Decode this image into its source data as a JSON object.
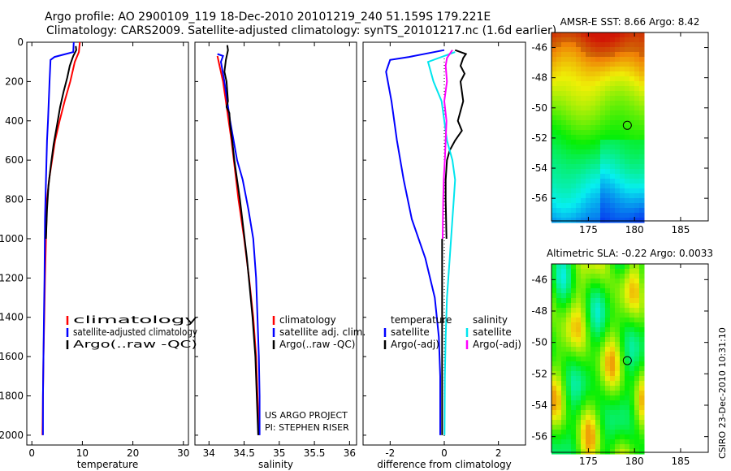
{
  "header": {
    "title_line1": "Argo profile: AO 2900109_119 18-Dec-2010 20101219_240 51.159S 179.221E",
    "title_line2": "Climatology: CARS2009. Satellite-adjusted climatology: synTS_20101217.nc (1.6d earlier)"
  },
  "colors": {
    "climatology": "#ff0000",
    "satellite": "#0000ff",
    "argo": "#000000",
    "salinity_sat": "#00e5ee",
    "salinity_argo": "#ff00ff"
  },
  "chart_data": [
    {
      "type": "line",
      "id": "temperature",
      "xlabel": "temperature",
      "xlim": [
        -1,
        31
      ],
      "ylim": [
        0,
        2050
      ],
      "x_ticks": [
        0,
        10,
        20,
        30
      ],
      "y_ticks": [
        0,
        200,
        400,
        600,
        800,
        1000,
        1200,
        1400,
        1600,
        1800,
        2000
      ],
      "legend": [
        "climatology",
        "satellite-adjusted climatology",
        "Argo(..raw -QC)"
      ],
      "series": [
        {
          "name": "climatology",
          "color": "#ff0000",
          "points": [
            [
              9.5,
              0
            ],
            [
              9.3,
              50
            ],
            [
              8.5,
              100
            ],
            [
              7.6,
              200
            ],
            [
              6.5,
              300
            ],
            [
              5.5,
              400
            ],
            [
              4.6,
              500
            ],
            [
              4,
              600
            ],
            [
              3.4,
              700
            ],
            [
              3,
              800
            ],
            [
              2.8,
              1000
            ],
            [
              2.6,
              1200
            ],
            [
              2.45,
              1400
            ],
            [
              2.3,
              1600
            ],
            [
              2.2,
              1800
            ],
            [
              2.1,
              2000
            ]
          ]
        },
        {
          "name": "satellite-adjusted climatology",
          "color": "#0000ff",
          "points": [
            [
              8.3,
              0
            ],
            [
              8.2,
              50
            ],
            [
              4.5,
              75
            ],
            [
              3.7,
              90
            ],
            [
              3.5,
              200
            ],
            [
              3.2,
              400
            ],
            [
              3,
              500
            ],
            [
              2.8,
              700
            ],
            [
              2.6,
              900
            ],
            [
              2.5,
              1200
            ],
            [
              2.4,
              1400
            ],
            [
              2.3,
              1600
            ],
            [
              2.2,
              1800
            ],
            [
              2.2,
              2000
            ]
          ]
        },
        {
          "name": "Argo(..raw -QC)",
          "color": "#000000",
          "points": [
            [
              8.7,
              20
            ],
            [
              8.8,
              40
            ],
            [
              8.2,
              70
            ],
            [
              7.5,
              120
            ],
            [
              7,
              180
            ],
            [
              6.3,
              250
            ],
            [
              5.6,
              330
            ],
            [
              5,
              420
            ],
            [
              4.3,
              520
            ],
            [
              3.8,
              620
            ],
            [
              3.3,
              730
            ],
            [
              3,
              850
            ],
            [
              2.8,
              1000
            ]
          ]
        }
      ]
    },
    {
      "type": "line",
      "id": "salinity",
      "xlabel": "salinity",
      "xlim": [
        33.8,
        36.1
      ],
      "ylim": [
        0,
        2050
      ],
      "x_ticks": [
        34,
        34.5,
        35,
        35.5,
        36
      ],
      "legend": [
        "climatology",
        "satellite adj. clim.",
        "Argo(..raw -QC)"
      ],
      "series": [
        {
          "name": "climatology",
          "color": "#ff0000",
          "points": [
            [
              34.12,
              70
            ],
            [
              34.15,
              120
            ],
            [
              34.2,
              200
            ],
            [
              34.24,
              300
            ],
            [
              34.28,
              400
            ],
            [
              34.32,
              500
            ],
            [
              34.37,
              650
            ],
            [
              34.42,
              800
            ],
            [
              34.5,
              1000
            ],
            [
              34.57,
              1200
            ],
            [
              34.63,
              1400
            ],
            [
              34.67,
              1600
            ],
            [
              34.69,
              1800
            ],
            [
              34.71,
              2000
            ]
          ]
        },
        {
          "name": "satellite adj. clim.",
          "color": "#0000ff",
          "points": [
            [
              34.12,
              60
            ],
            [
              34.2,
              70
            ],
            [
              34.17,
              100
            ],
            [
              34.22,
              200
            ],
            [
              34.3,
              400
            ],
            [
              34.4,
              600
            ],
            [
              34.48,
              700
            ],
            [
              34.56,
              850
            ],
            [
              34.63,
              1000
            ],
            [
              34.67,
              1200
            ],
            [
              34.69,
              1400
            ],
            [
              34.71,
              1600
            ],
            [
              34.72,
              1800
            ],
            [
              34.72,
              2000
            ]
          ]
        },
        {
          "name": "Argo(..raw -QC)",
          "color": "#000000",
          "points": [
            [
              34.26,
              15
            ],
            [
              34.27,
              40
            ],
            [
              34.24,
              90
            ],
            [
              34.22,
              150
            ],
            [
              34.25,
              200
            ],
            [
              34.27,
              300
            ],
            [
              34.25,
              330
            ],
            [
              34.29,
              360
            ],
            [
              34.3,
              420
            ],
            [
              34.33,
              500
            ],
            [
              34.36,
              600
            ],
            [
              34.4,
              700
            ],
            [
              34.44,
              800
            ],
            [
              34.49,
              950
            ],
            [
              34.54,
              1100
            ],
            [
              34.58,
              1250
            ],
            [
              34.62,
              1400
            ],
            [
              34.66,
              1600
            ],
            [
              34.68,
              1800
            ],
            [
              34.7,
              2000
            ]
          ]
        }
      ]
    },
    {
      "type": "line",
      "id": "difference",
      "xlabel": "difference from climatology",
      "xlim": [
        -3,
        3
      ],
      "ylim": [
        0,
        2050
      ],
      "x_ticks": [
        -2,
        0,
        2
      ],
      "legend_temperature": [
        "temperature",
        "satellite",
        "Argo(-adj)"
      ],
      "legend_salinity": [
        "salinity",
        "satellite",
        "Argo(-adj)"
      ],
      "series": [
        {
          "name": "temperature satellite",
          "color": "#0000ff",
          "points": [
            [
              0,
              40
            ],
            [
              -1.3,
              75
            ],
            [
              -2,
              90
            ],
            [
              -2.15,
              150
            ],
            [
              -1.95,
              300
            ],
            [
              -1.75,
              500
            ],
            [
              -1.5,
              700
            ],
            [
              -1.2,
              900
            ],
            [
              -0.7,
              1100
            ],
            [
              -0.35,
              1300
            ],
            [
              -0.2,
              1500
            ],
            [
              -0.15,
              1700
            ],
            [
              -0.15,
              2000
            ]
          ]
        },
        {
          "name": "temperature Argo(-adj)",
          "color": "#000000",
          "points": [
            [
              0.4,
              40
            ],
            [
              0.8,
              60
            ],
            [
              0.7,
              80
            ],
            [
              0.6,
              120
            ],
            [
              0.75,
              160
            ],
            [
              0.6,
              200
            ],
            [
              0.7,
              300
            ],
            [
              0.6,
              350
            ],
            [
              0.5,
              400
            ],
            [
              0.65,
              450
            ],
            [
              0.4,
              500
            ],
            [
              0.2,
              550
            ],
            [
              0.1,
              600
            ],
            [
              0.05,
              700
            ],
            [
              0.05,
              800
            ],
            [
              0.08,
              1000
            ]
          ]
        },
        {
          "name": "salinity satellite",
          "color": "#00e5ee",
          "points": [
            [
              0.4,
              50
            ],
            [
              -0.6,
              100
            ],
            [
              -0.4,
              200
            ],
            [
              -0.1,
              300
            ],
            [
              0,
              400
            ],
            [
              0.1,
              500
            ],
            [
              0.3,
              600
            ],
            [
              0.4,
              700
            ],
            [
              0.35,
              800
            ],
            [
              0.3,
              900
            ],
            [
              0.2,
              1100
            ],
            [
              0.1,
              1300
            ],
            [
              0.05,
              1500
            ],
            [
              0.02,
              1700
            ],
            [
              0.01,
              2000
            ]
          ]
        },
        {
          "name": "salinity Argo(-adj)",
          "color": "#ff00ff",
          "points": [
            [
              0.3,
              40
            ],
            [
              0.1,
              80
            ],
            [
              0.05,
              120
            ],
            [
              0.1,
              200
            ],
            [
              0.0,
              300
            ],
            [
              0.08,
              400
            ],
            [
              0.05,
              500
            ],
            [
              0.02,
              600
            ],
            [
              -0.02,
              700
            ],
            [
              -0.04,
              800
            ],
            [
              -0.05,
              900
            ],
            [
              -0.06,
              1000
            ]
          ]
        }
      ],
      "argo_end_line": {
        "color": "#000000",
        "x": -0.08,
        "from": 1000,
        "to": 2000
      }
    },
    {
      "type": "heatmap",
      "id": "amsre_sst",
      "title": "AMSR-E SST: 8.66 Argo: 8.42",
      "xlim": [
        171,
        188
      ],
      "ylim": [
        -57.5,
        -45
      ],
      "x_ticks": [
        175,
        180,
        185
      ],
      "y_ticks": [
        -46,
        -48,
        -50,
        -52,
        -54,
        -56
      ],
      "marker": {
        "lon": 179.221,
        "lat": -51.159
      }
    },
    {
      "type": "heatmap",
      "id": "altimetric_sla",
      "title": "Altimetric SLA: -0.22 Argo: 0.0033",
      "xlim": [
        171,
        188
      ],
      "ylim": [
        -57,
        -45
      ],
      "x_ticks": [
        175,
        180,
        185
      ],
      "y_ticks": [
        -46,
        -48,
        -50,
        -52,
        -54,
        -56
      ],
      "marker": {
        "lon": 179.221,
        "lat": -51.159
      }
    }
  ],
  "annotations": {
    "project_line1": "US ARGO PROJECT",
    "project_line2": "PI: STEPHEN RISER",
    "credit": "CSIRO 23-Dec-2010 10:31:10"
  }
}
